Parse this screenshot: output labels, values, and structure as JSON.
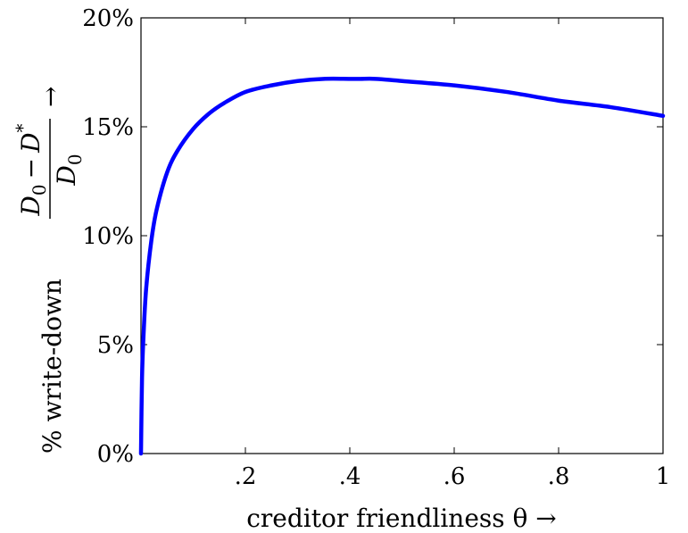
{
  "chart_data": {
    "type": "line",
    "xlabel": "creditor friendliness θ →",
    "ylabel": "% write-down",
    "ylabel_fraction": {
      "numerator_base": "D",
      "numerator_sub1": "0",
      "minus": "−",
      "numerator_base2": "D",
      "numerator_sup": "*",
      "denominator_base": "D",
      "denominator_sub": "0",
      "arrow": "→"
    },
    "xlim": [
      0,
      1
    ],
    "ylim": [
      0,
      20
    ],
    "x_ticks": [
      {
        "value": 0.2,
        "label": ".2"
      },
      {
        "value": 0.4,
        "label": ".4"
      },
      {
        "value": 0.6,
        "label": ".6"
      },
      {
        "value": 0.8,
        "label": ".8"
      },
      {
        "value": 1.0,
        "label": "1"
      }
    ],
    "y_ticks": [
      {
        "value": 0,
        "label": "0%"
      },
      {
        "value": 5,
        "label": "5%"
      },
      {
        "value": 10,
        "label": "10%"
      },
      {
        "value": 15,
        "label": "15%"
      },
      {
        "value": 20,
        "label": "20%"
      }
    ],
    "grid": false,
    "series": [
      {
        "color": "#0000ff",
        "x": [
          0.0,
          0.002,
          0.005,
          0.01,
          0.02,
          0.03,
          0.05,
          0.07,
          0.1,
          0.13,
          0.16,
          0.2,
          0.25,
          0.3,
          0.35,
          0.4,
          0.42,
          0.45,
          0.5,
          0.6,
          0.7,
          0.8,
          0.9,
          1.0
        ],
        "y": [
          0.0,
          3.5,
          5.5,
          7.6,
          9.8,
          11.2,
          12.9,
          13.9,
          14.9,
          15.6,
          16.1,
          16.6,
          16.9,
          17.1,
          17.2,
          17.2,
          17.2,
          17.2,
          17.1,
          16.9,
          16.6,
          16.2,
          15.9,
          15.5
        ]
      }
    ]
  }
}
